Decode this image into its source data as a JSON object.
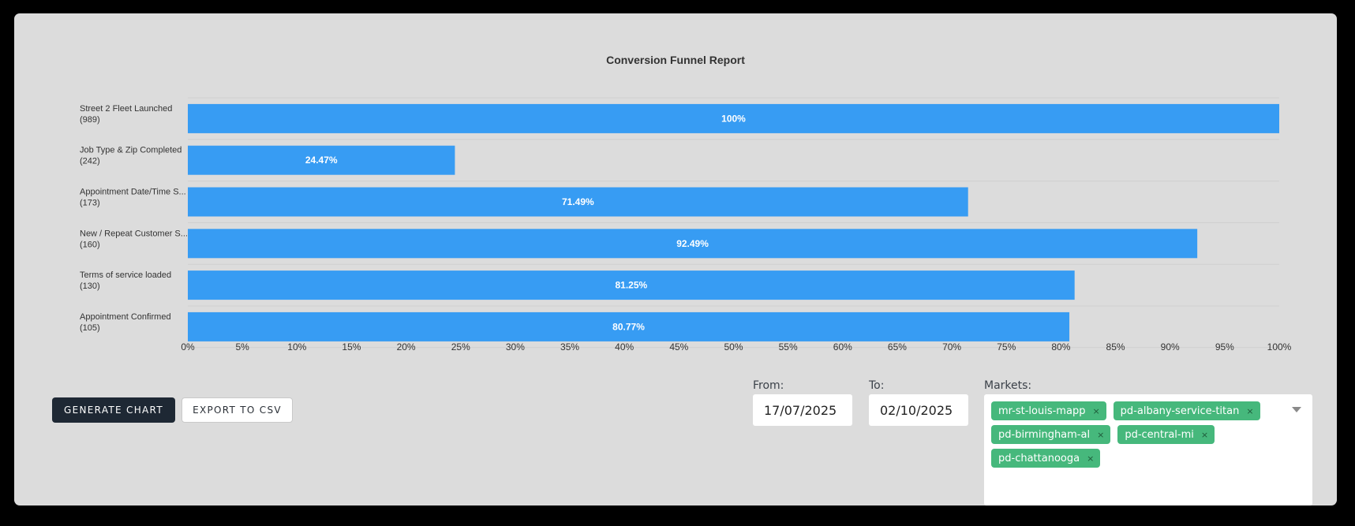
{
  "chart_data": {
    "type": "bar",
    "orientation": "horizontal",
    "title": "Conversion Funnel Report",
    "categories": [
      {
        "label": "Street 2 Fleet Launched",
        "count": "(989)"
      },
      {
        "label": "Job Type & Zip Completed",
        "count": "(242)"
      },
      {
        "label": "Appointment Date/Time S...",
        "count": "(173)"
      },
      {
        "label": "New / Repeat Customer S...",
        "count": "(160)"
      },
      {
        "label": "Terms of service loaded",
        "count": "(130)"
      },
      {
        "label": "Appointment Confirmed",
        "count": "(105)"
      }
    ],
    "values": [
      100,
      24.47,
      71.49,
      92.49,
      81.25,
      80.77
    ],
    "value_labels": [
      "100%",
      "24.47%",
      "71.49%",
      "92.49%",
      "81.25%",
      "80.77%"
    ],
    "xlim": [
      0,
      100
    ],
    "x_ticks": [
      "0%",
      "5%",
      "10%",
      "15%",
      "20%",
      "25%",
      "30%",
      "35%",
      "40%",
      "45%",
      "50%",
      "55%",
      "60%",
      "65%",
      "70%",
      "75%",
      "80%",
      "85%",
      "90%",
      "95%",
      "100%"
    ],
    "bar_color": "#379cf3",
    "grid": false
  },
  "controls": {
    "generate_label": "GENERATE CHART",
    "export_label": "EXPORT TO CSV",
    "from_label": "From:",
    "from_value": "17/07/2025",
    "to_label": "To:",
    "to_value": "02/10/2025",
    "markets_label": "Markets:",
    "markets": [
      "mr-st-louis-mapp",
      "pd-albany-service-titan",
      "pd-birmingham-al",
      "pd-central-mi",
      "pd-chattanooga"
    ],
    "tag_remove_symbol": "×"
  },
  "colors": {
    "panel": "#dcdcdc",
    "primary_button": "#1e2834",
    "tag": "#46b87c"
  }
}
